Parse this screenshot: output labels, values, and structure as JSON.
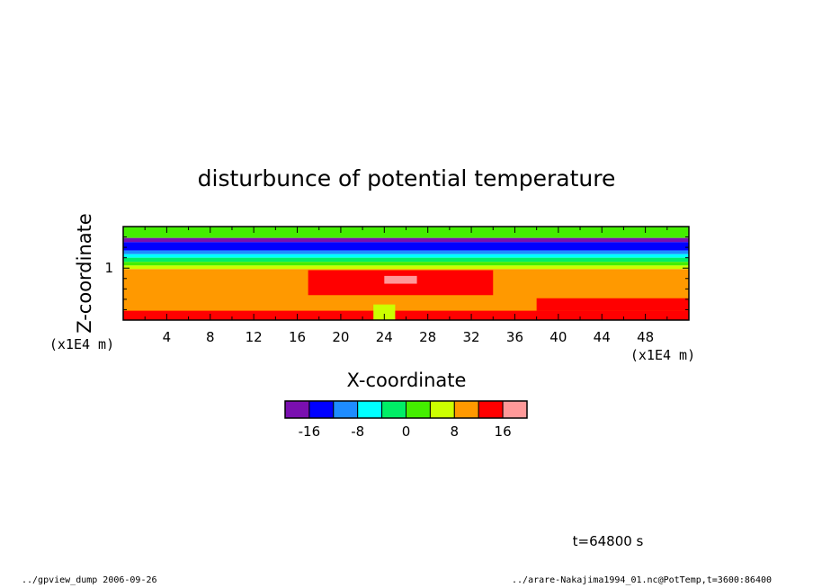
{
  "chart_data": {
    "type": "heatmap",
    "title": "disturbunce of potential temperature",
    "xlabel": "X-coordinate",
    "ylabel": "Z-coordinate",
    "x_unit": "(x1E4 m)",
    "z_unit": "(x1E4 m)",
    "xlim": [
      0,
      52
    ],
    "zlim": [
      0,
      1.8
    ],
    "x_ticks": [
      4,
      8,
      12,
      16,
      20,
      24,
      28,
      32,
      36,
      40,
      44,
      48
    ],
    "z_ticks": [
      1
    ],
    "colorbar": {
      "levels": [
        -20,
        -16,
        -12,
        -8,
        -4,
        0,
        4,
        8,
        12,
        16,
        20
      ],
      "tick_labels": [
        "-16",
        "-8",
        "0",
        "8",
        "16"
      ],
      "tick_values": [
        -16,
        -8,
        0,
        8,
        16
      ],
      "colors": [
        "#7a0fb0",
        "#0000ff",
        "#1e8cff",
        "#00ffff",
        "#00ee66",
        "#44ee00",
        "#ccff00",
        "#ff9900",
        "#ff0000",
        "#ff9999"
      ]
    },
    "layers": [
      {
        "z_range": [
          1.58,
          1.8
        ],
        "value_range": [
          0,
          8
        ],
        "color": "#44ee00"
      },
      {
        "z_range": [
          1.5,
          1.58
        ],
        "value_range": [
          -20,
          -16
        ],
        "color": "#7a0fb0"
      },
      {
        "z_range": [
          1.34,
          1.5
        ],
        "value_range": [
          -16,
          -12
        ],
        "color": "#0000ff"
      },
      {
        "z_range": [
          1.27,
          1.34
        ],
        "value_range": [
          -12,
          -8
        ],
        "color": "#1e8cff"
      },
      {
        "z_range": [
          1.2,
          1.27
        ],
        "value_range": [
          -8,
          -4
        ],
        "color": "#00ffff"
      },
      {
        "z_range": [
          1.12,
          1.2
        ],
        "value_range": [
          -4,
          0
        ],
        "color": "#00ee66"
      },
      {
        "z_range": [
          1.05,
          1.12
        ],
        "value_range": [
          0,
          4
        ],
        "color": "#44ee00"
      },
      {
        "z_range": [
          0.98,
          1.05
        ],
        "value_range": [
          4,
          8
        ],
        "color": "#ccff00"
      },
      {
        "z_range": [
          0,
          0.98
        ],
        "value_range": [
          8,
          12
        ],
        "color": "#ff9900"
      }
    ],
    "warm_patches": [
      {
        "x_range": [
          17,
          34
        ],
        "z_range": [
          0.48,
          0.96
        ],
        "value_range": [
          12,
          16
        ],
        "color": "#ff0000"
      },
      {
        "x_range": [
          24,
          27
        ],
        "z_range": [
          0.7,
          0.85
        ],
        "value_range": [
          16,
          20
        ],
        "color": "#ff9999"
      },
      {
        "x_range": [
          0,
          52
        ],
        "z_range": [
          0,
          0.18
        ],
        "value_range": [
          12,
          16
        ],
        "color": "#ff0000"
      },
      {
        "x_range": [
          38,
          52
        ],
        "z_range": [
          0.18,
          0.42
        ],
        "value_range": [
          12,
          16
        ],
        "color": "#ff0000"
      },
      {
        "x_range": [
          23,
          25
        ],
        "z_range": [
          0,
          0.3
        ],
        "value_range": [
          4,
          8
        ],
        "color": "#ccff00"
      }
    ]
  },
  "time_label": "t=64800 s",
  "footer_left": "../gpview_dump  2006-09-26",
  "footer_right": "../arare-Nakajima1994_01.nc@PotTemp,t=3600:86400"
}
